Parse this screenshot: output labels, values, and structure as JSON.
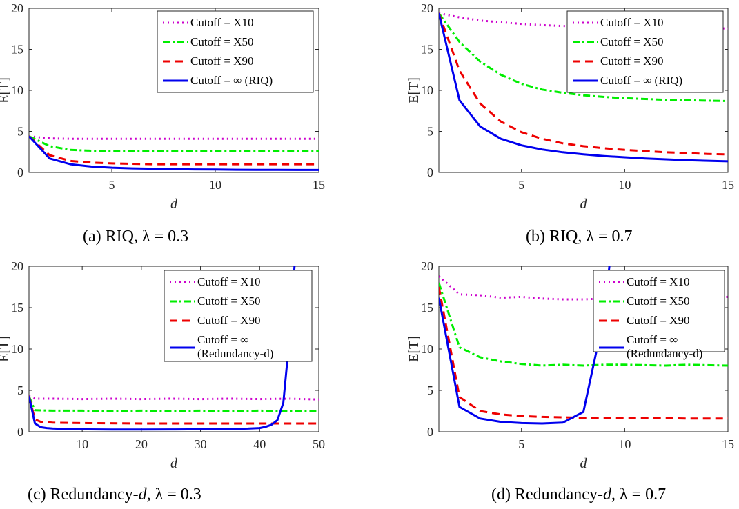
{
  "chart_data": [
    {
      "type": "line",
      "caption_prefix": "(a) RIQ, ",
      "caption_math": "λ = 0.3",
      "xlabel": "d",
      "ylabel": "E[T]",
      "xlim": [
        1,
        15
      ],
      "ylim": [
        0,
        20
      ],
      "xticks": [
        5,
        10,
        15
      ],
      "yticks": [
        0,
        5,
        10,
        15,
        20
      ],
      "grid": false,
      "legend_position": "top-right",
      "series": [
        {
          "name": "Cutoff = X10",
          "color": "#cc00cc",
          "dash": "dotted",
          "x": [
            1,
            2,
            3,
            4,
            5,
            6,
            7,
            8,
            9,
            10,
            11,
            12,
            13,
            14,
            15
          ],
          "y": [
            4.4,
            4.15,
            4.1,
            4.1,
            4.1,
            4.1,
            4.1,
            4.1,
            4.1,
            4.1,
            4.1,
            4.1,
            4.1,
            4.1,
            4.1
          ]
        },
        {
          "name": "Cutoff = X50",
          "color": "#00ee00",
          "dash": "dashdot",
          "x": [
            1,
            2,
            3,
            4,
            5,
            6,
            7,
            8,
            9,
            10,
            11,
            12,
            13,
            14,
            15
          ],
          "y": [
            4.4,
            3.2,
            2.75,
            2.65,
            2.6,
            2.6,
            2.6,
            2.6,
            2.6,
            2.6,
            2.6,
            2.6,
            2.6,
            2.6,
            2.6
          ]
        },
        {
          "name": "Cutoff = X90",
          "color": "#ee0000",
          "dash": "dashed",
          "x": [
            1,
            2,
            3,
            4,
            5,
            6,
            7,
            8,
            9,
            10,
            11,
            12,
            13,
            14,
            15
          ],
          "y": [
            4.4,
            2.1,
            1.4,
            1.2,
            1.1,
            1.05,
            1.0,
            1.0,
            1.0,
            1.0,
            1.0,
            1.0,
            1.0,
            1.0,
            1.0
          ]
        },
        {
          "name": "Cutoff = ∞ (RIQ)",
          "color": "#0000ee",
          "dash": "solid",
          "x": [
            1,
            2,
            3,
            4,
            5,
            6,
            7,
            8,
            9,
            10,
            11,
            12,
            13,
            14,
            15
          ],
          "y": [
            4.4,
            1.7,
            1.0,
            0.72,
            0.58,
            0.5,
            0.45,
            0.4,
            0.37,
            0.35,
            0.33,
            0.32,
            0.31,
            0.3,
            0.3
          ]
        }
      ]
    },
    {
      "type": "line",
      "caption_prefix": "(b) RIQ, ",
      "caption_math": "λ = 0.7",
      "xlabel": "d",
      "ylabel": "E[T]",
      "xlim": [
        1,
        15
      ],
      "ylim": [
        0,
        20
      ],
      "xticks": [
        5,
        10,
        15
      ],
      "yticks": [
        0,
        5,
        10,
        15,
        20
      ],
      "grid": false,
      "legend_position": "top-right",
      "series": [
        {
          "name": "Cutoff = X10",
          "color": "#cc00cc",
          "dash": "dotted",
          "x": [
            1,
            2,
            3,
            4,
            5,
            6,
            7,
            8,
            9,
            10,
            11,
            12,
            13,
            14,
            15
          ],
          "y": [
            19.4,
            18.9,
            18.5,
            18.3,
            18.1,
            17.95,
            17.85,
            17.8,
            17.75,
            17.7,
            17.65,
            17.62,
            17.6,
            17.58,
            17.55
          ]
        },
        {
          "name": "Cutoff = X50",
          "color": "#00ee00",
          "dash": "dashdot",
          "x": [
            1,
            2,
            3,
            4,
            5,
            6,
            7,
            8,
            9,
            10,
            11,
            12,
            13,
            14,
            15
          ],
          "y": [
            19.4,
            15.9,
            13.5,
            11.9,
            10.8,
            10.1,
            9.7,
            9.4,
            9.2,
            9.05,
            8.95,
            8.85,
            8.8,
            8.75,
            8.7
          ]
        },
        {
          "name": "Cutoff = X90",
          "color": "#ee0000",
          "dash": "dashed",
          "x": [
            1,
            2,
            3,
            4,
            5,
            6,
            7,
            8,
            9,
            10,
            11,
            12,
            13,
            14,
            15
          ],
          "y": [
            19.4,
            12.4,
            8.4,
            6.2,
            4.9,
            4.1,
            3.55,
            3.2,
            2.95,
            2.75,
            2.6,
            2.45,
            2.35,
            2.25,
            2.2
          ]
        },
        {
          "name": "Cutoff = ∞ (RIQ)",
          "color": "#0000ee",
          "dash": "solid",
          "x": [
            1,
            2,
            3,
            4,
            5,
            6,
            7,
            8,
            9,
            10,
            11,
            12,
            13,
            14,
            15
          ],
          "y": [
            19.4,
            8.8,
            5.6,
            4.1,
            3.3,
            2.8,
            2.45,
            2.2,
            2.0,
            1.85,
            1.7,
            1.6,
            1.5,
            1.42,
            1.35
          ]
        }
      ]
    },
    {
      "type": "line",
      "caption_prefix": "(c) Redundancy-",
      "caption_italic": "d",
      "caption_suffix": ", ",
      "caption_math": "λ = 0.3",
      "xlabel": "d",
      "ylabel": "E[T]",
      "xlim": [
        1,
        50
      ],
      "ylim": [
        0,
        20
      ],
      "xticks": [
        10,
        20,
        30,
        40,
        50
      ],
      "yticks": [
        0,
        5,
        10,
        15,
        20
      ],
      "grid": false,
      "legend_position": "top-right",
      "series": [
        {
          "name": "Cutoff = X10",
          "color": "#cc00cc",
          "dash": "dotted",
          "x": [
            1,
            2,
            5,
            10,
            15,
            20,
            25,
            30,
            35,
            40,
            45,
            50
          ],
          "y": [
            4.3,
            4.0,
            4.0,
            3.95,
            4.0,
            3.95,
            4.0,
            3.95,
            4.0,
            3.95,
            4.0,
            3.9
          ]
        },
        {
          "name": "Cutoff = X50",
          "color": "#00ee00",
          "dash": "dashdot",
          "x": [
            1,
            2,
            5,
            10,
            15,
            20,
            25,
            30,
            35,
            40,
            45,
            50
          ],
          "y": [
            4.3,
            2.6,
            2.55,
            2.55,
            2.5,
            2.55,
            2.5,
            2.55,
            2.5,
            2.55,
            2.5,
            2.5
          ]
        },
        {
          "name": "Cutoff = X90",
          "color": "#ee0000",
          "dash": "dashed",
          "x": [
            1,
            2,
            3,
            5,
            10,
            20,
            30,
            40,
            45,
            50
          ],
          "y": [
            4.3,
            1.5,
            1.2,
            1.1,
            1.05,
            1.0,
            1.0,
            1.0,
            1.0,
            1.0
          ]
        },
        {
          "name": "Cutoff = ∞",
          "name2": "(Redundancy-d)",
          "color": "#0000ee",
          "dash": "solid",
          "x": [
            1,
            2,
            3,
            4,
            5,
            8,
            10,
            15,
            20,
            25,
            30,
            35,
            38,
            40,
            41,
            42,
            43,
            44,
            45,
            46
          ],
          "y": [
            4.3,
            1.0,
            0.55,
            0.45,
            0.4,
            0.32,
            0.3,
            0.27,
            0.27,
            0.28,
            0.3,
            0.33,
            0.38,
            0.45,
            0.6,
            0.85,
            1.4,
            3.5,
            11.0,
            21.0
          ]
        }
      ]
    },
    {
      "type": "line",
      "caption_prefix": "(d) Redundancy-",
      "caption_italic": "d",
      "caption_suffix": ", ",
      "caption_math": "λ = 0.7",
      "xlabel": "d",
      "ylabel": "E[T]",
      "xlim": [
        1,
        15
      ],
      "ylim": [
        0,
        20
      ],
      "xticks": [
        5,
        10,
        15
      ],
      "yticks": [
        0,
        5,
        10,
        15,
        20
      ],
      "grid": false,
      "legend_position": "top-right",
      "series": [
        {
          "name": "Cutoff = X10",
          "color": "#cc00cc",
          "dash": "dotted",
          "x": [
            1,
            2,
            3,
            4,
            5,
            6,
            7,
            8,
            9,
            10,
            11,
            12,
            13,
            14,
            15
          ],
          "y": [
            18.8,
            16.6,
            16.5,
            16.2,
            16.3,
            16.1,
            16.0,
            16.0,
            16.1,
            16.2,
            16.1,
            16.2,
            16.1,
            16.2,
            16.3
          ]
        },
        {
          "name": "Cutoff = X50",
          "color": "#00ee00",
          "dash": "dashdot",
          "x": [
            1,
            2,
            3,
            4,
            5,
            6,
            7,
            8,
            9,
            10,
            11,
            12,
            13,
            14,
            15
          ],
          "y": [
            18.0,
            10.2,
            9.0,
            8.5,
            8.2,
            8.0,
            8.1,
            8.0,
            8.1,
            8.1,
            8.05,
            8.0,
            8.1,
            8.05,
            8.0
          ]
        },
        {
          "name": "Cutoff = X90",
          "color": "#ee0000",
          "dash": "dashed",
          "x": [
            1,
            2,
            3,
            4,
            5,
            6,
            7,
            8,
            9,
            10,
            11,
            12,
            13,
            14,
            15
          ],
          "y": [
            17.5,
            4.2,
            2.5,
            2.1,
            1.9,
            1.8,
            1.75,
            1.7,
            1.7,
            1.65,
            1.65,
            1.65,
            1.6,
            1.6,
            1.6
          ]
        },
        {
          "name": "Cutoff = ∞",
          "name2": "(Redundancy-d)",
          "color": "#0000ee",
          "dash": "solid",
          "x": [
            1,
            2,
            3,
            4,
            5,
            6,
            7,
            8,
            9,
            9.3
          ],
          "y": [
            16.2,
            3.0,
            1.6,
            1.2,
            1.05,
            1.0,
            1.1,
            2.4,
            14.0,
            21.0
          ]
        }
      ]
    }
  ]
}
